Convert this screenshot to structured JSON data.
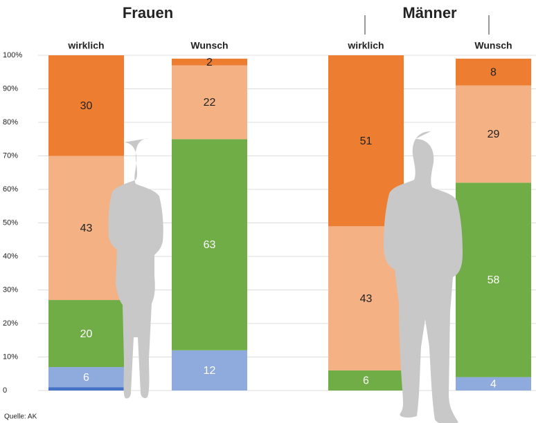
{
  "chart_data": {
    "type": "stacked_bar",
    "groups": [
      "Frauen",
      "Männer"
    ],
    "categories": [
      "wirklich",
      "Wunsch",
      "wirklich",
      "Wunsch"
    ],
    "series": [
      {
        "color": "#4472c4",
        "label_color": "#ffffff",
        "values": [
          1,
          0,
          0,
          0
        ]
      },
      {
        "color": "#8faadc",
        "label_color": "#ffffff",
        "values": [
          6,
          12,
          0,
          4
        ]
      },
      {
        "color": "#70ad47",
        "label_color": "#ffffff",
        "values": [
          20,
          63,
          6,
          58
        ]
      },
      {
        "color": "#f4b183",
        "label_color": "#222222",
        "values": [
          43,
          22,
          43,
          29
        ]
      },
      {
        "color": "#ed7d31",
        "label_color": "#222222",
        "values": [
          30,
          2,
          51,
          8
        ]
      }
    ],
    "ylim": [
      0,
      100
    ],
    "yticks": [
      {
        "value": 0,
        "label": "0"
      },
      {
        "value": 10,
        "label": "10%"
      },
      {
        "value": 20,
        "label": "20%"
      },
      {
        "value": 30,
        "label": "30%"
      },
      {
        "value": 40,
        "label": "40%"
      },
      {
        "value": 50,
        "label": "50%"
      },
      {
        "value": 60,
        "label": "60%"
      },
      {
        "value": 70,
        "label": "70%"
      },
      {
        "value": 80,
        "label": "80%"
      },
      {
        "value": 90,
        "label": "90%"
      },
      {
        "value": 100,
        "label": "100%"
      }
    ],
    "grid": true,
    "source": "Quelle: AK"
  }
}
